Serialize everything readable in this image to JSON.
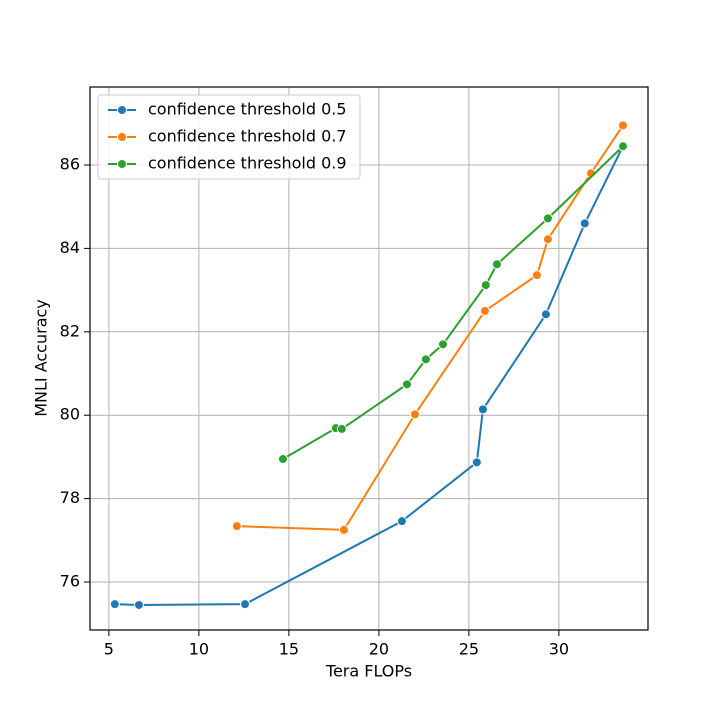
{
  "chart_data": {
    "type": "line",
    "x_label": "Tera FLOPs",
    "y_label": "MNLI Accuracy",
    "xlim": [
      3.95,
      34.95
    ],
    "ylim": [
      74.85,
      87.87
    ],
    "xticks": [
      5,
      10,
      15,
      20,
      25,
      30
    ],
    "yticks": [
      76,
      78,
      80,
      82,
      84,
      86
    ],
    "grid": true,
    "legend": "upper left",
    "series": [
      {
        "name": "confidence threshold 0.5",
        "color": "#1f77b4",
        "x": [
          5.33,
          6.67,
          12.56,
          21.28,
          25.44,
          25.78,
          29.28,
          31.44,
          33.56
        ],
        "values": [
          75.47,
          75.45,
          75.47,
          77.46,
          78.87,
          80.14,
          82.42,
          84.6,
          86.45
        ]
      },
      {
        "name": "confidence threshold 0.7",
        "color": "#ff7f0e",
        "x": [
          12.11,
          18.06,
          22.0,
          25.89,
          28.78,
          29.39,
          31.78,
          33.56
        ],
        "values": [
          77.34,
          77.25,
          80.02,
          82.5,
          83.36,
          84.22,
          85.8,
          86.95
        ]
      },
      {
        "name": "confidence threshold 0.9",
        "color": "#2ca02c",
        "x": [
          14.67,
          17.61,
          17.94,
          21.56,
          22.61,
          23.56,
          25.94,
          26.56,
          29.39,
          33.56
        ],
        "values": [
          78.95,
          79.69,
          79.67,
          80.74,
          81.34,
          81.7,
          83.12,
          83.62,
          84.72,
          86.45
        ]
      }
    ]
  }
}
